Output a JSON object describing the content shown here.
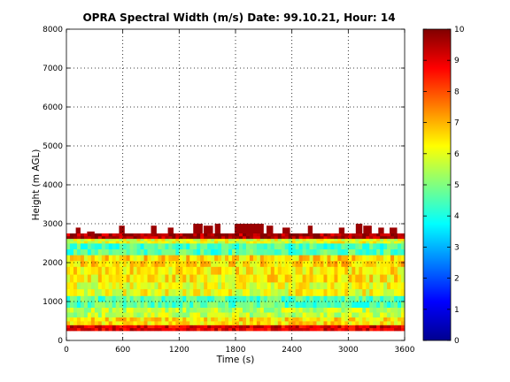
{
  "chart_data": {
    "type": "heatmap",
    "title": "OPRA Spectral Width (m/s)  Date: 99.10.21, Hour: 14",
    "xlabel": "Time (s)",
    "ylabel": "Height (m AGL)",
    "xlim": [
      0,
      3600
    ],
    "ylim": [
      0,
      8000
    ],
    "xticks": [
      0,
      600,
      1200,
      1800,
      2400,
      3000,
      3600
    ],
    "yticks": [
      0,
      1000,
      2000,
      3000,
      4000,
      5000,
      6000,
      7000,
      8000
    ],
    "grid": true,
    "colorbar": {
      "range": [
        0,
        10
      ],
      "ticks": [
        0,
        1,
        2,
        3,
        4,
        5,
        6,
        7,
        8,
        9,
        10
      ],
      "colormap": "jet"
    },
    "bands": [
      {
        "from": 250,
        "to": 400,
        "value": 9.0
      },
      {
        "from": 400,
        "to": 600,
        "value": 6.5
      },
      {
        "from": 600,
        "to": 850,
        "value": 5.6
      },
      {
        "from": 850,
        "to": 1150,
        "value": 4.6
      },
      {
        "from": 1150,
        "to": 1500,
        "value": 6.1
      },
      {
        "from": 1500,
        "to": 1900,
        "value": 6.4
      },
      {
        "from": 1900,
        "to": 2200,
        "value": 6.6
      },
      {
        "from": 2200,
        "to": 2500,
        "value": 4.5
      },
      {
        "from": 2500,
        "to": 2620,
        "value": 6.0
      },
      {
        "from": 2620,
        "to": 2750,
        "value": 9.6
      }
    ],
    "top_spikes": [
      {
        "x": [
          100,
          150
        ],
        "top": 2900
      },
      {
        "x": [
          220,
          300
        ],
        "top": 2800
      },
      {
        "x": [
          560,
          620
        ],
        "top": 2950
      },
      {
        "x": [
          900,
          960
        ],
        "top": 2950
      },
      {
        "x": [
          1080,
          1140
        ],
        "top": 2900
      },
      {
        "x": [
          1350,
          1450
        ],
        "top": 3000
      },
      {
        "x": [
          1460,
          1560
        ],
        "top": 2950
      },
      {
        "x": [
          1580,
          1640
        ],
        "top": 3000
      },
      {
        "x": [
          1790,
          2100
        ],
        "top": 3000
      },
      {
        "x": [
          2130,
          2200
        ],
        "top": 2950
      },
      {
        "x": [
          2300,
          2380
        ],
        "top": 2900
      },
      {
        "x": [
          2570,
          2620
        ],
        "top": 2950
      },
      {
        "x": [
          2900,
          2960
        ],
        "top": 2900
      },
      {
        "x": [
          3080,
          3150
        ],
        "top": 3000
      },
      {
        "x": [
          3160,
          3250
        ],
        "top": 2950
      },
      {
        "x": [
          3320,
          3380
        ],
        "top": 2900
      },
      {
        "x": [
          3440,
          3520
        ],
        "top": 2900
      }
    ]
  }
}
